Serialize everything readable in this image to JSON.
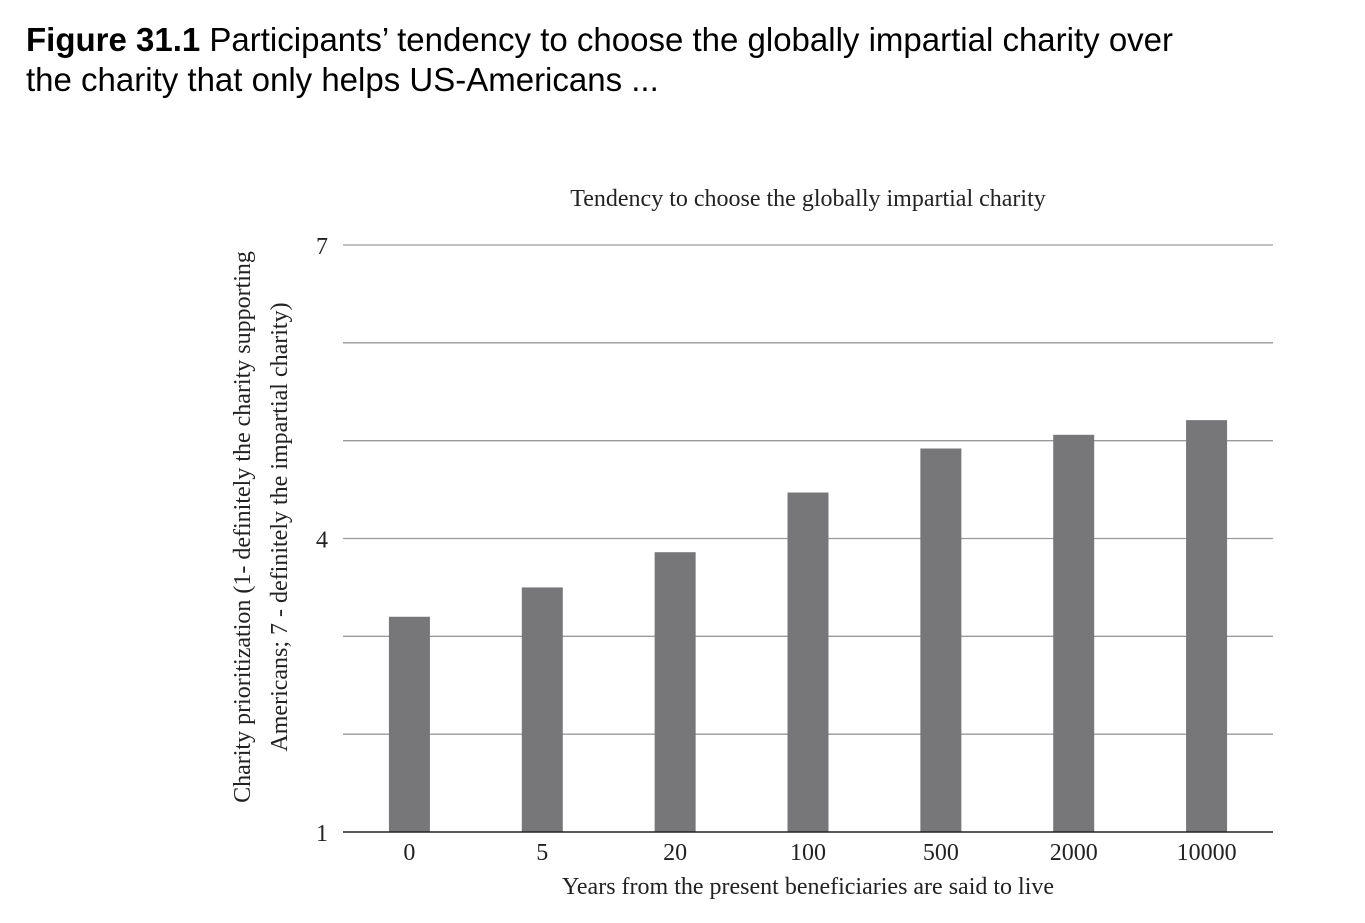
{
  "caption": {
    "label": "Figure 31.1",
    "text": "Participants’ tendency to choose the globally impartial charity over the charity that only helps US-Americans ..."
  },
  "chart_data": {
    "type": "bar",
    "title": "Tendency to choose the globally impartial charity",
    "xlabel": "Years from the present beneficiaries are said to live",
    "ylabel_line1": "Charity prioritization (1- definitely the charity supporting",
    "ylabel_line2": "Americans; 7 - definitely the impartial charity)",
    "categories": [
      "0",
      "5",
      "20",
      "100",
      "500",
      "2000",
      "10000"
    ],
    "values": [
      3.2,
      3.5,
      3.86,
      4.47,
      4.92,
      5.06,
      5.21
    ],
    "ylim": [
      1,
      7
    ],
    "yticks": [
      1,
      4,
      7
    ],
    "gridlines": [
      1,
      2,
      3,
      4,
      5,
      6,
      7
    ],
    "grid": true,
    "bar_color": "#77777a"
  }
}
